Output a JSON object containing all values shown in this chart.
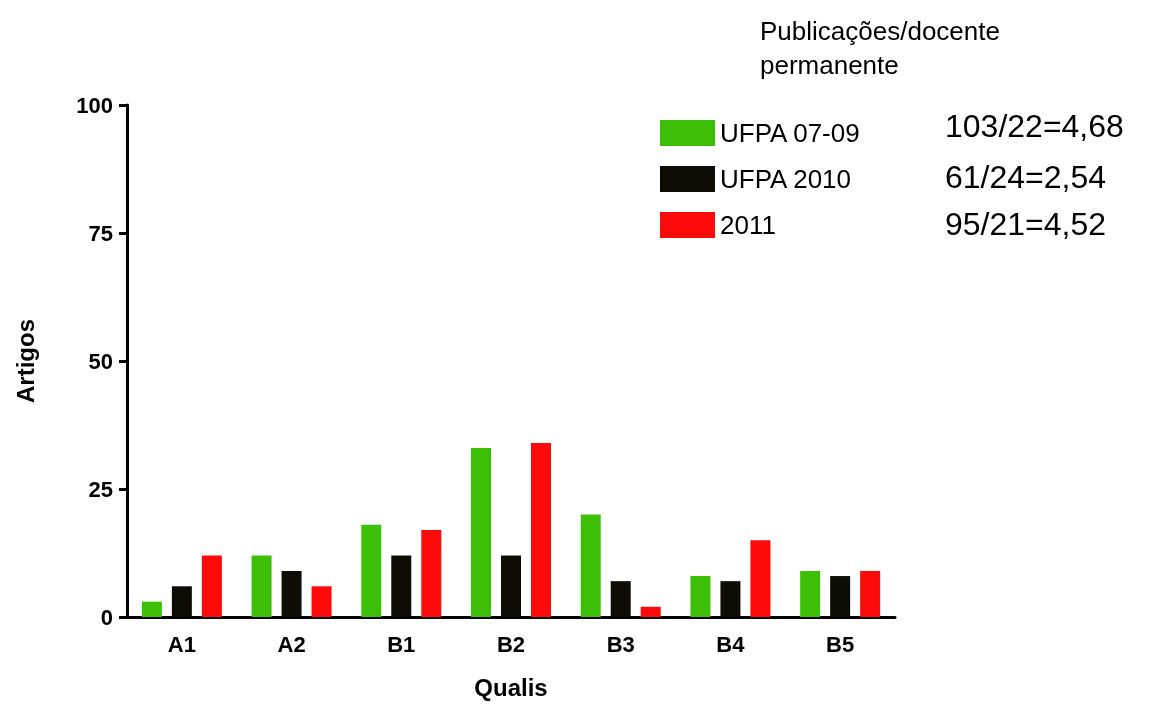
{
  "chart_data": {
    "type": "bar",
    "xlabel": "Qualis",
    "ylabel": "Artigos",
    "categories": [
      "A1",
      "A2",
      "B1",
      "B2",
      "B3",
      "B4",
      "B5"
    ],
    "series": [
      {
        "name": "UFPA 07-09",
        "color": "#3cbf06",
        "values": [
          3,
          12,
          18,
          33,
          20,
          8,
          9
        ]
      },
      {
        "name": "UFPA 2010",
        "color": "#0d0d05",
        "values": [
          6,
          9,
          12,
          12,
          7,
          7,
          8
        ]
      },
      {
        "name": "2011",
        "color": "#ff0a0a",
        "values": [
          12,
          6,
          17,
          34,
          2,
          15,
          9
        ]
      }
    ],
    "ylim": [
      0,
      100
    ],
    "yticks": [
      0,
      25,
      50,
      75,
      100
    ],
    "grid": false,
    "legend": "top right",
    "annotations": [
      "Publicações/docente permanente",
      "103/22=4,68",
      "61/24=2,54",
      "95/21=4,52"
    ]
  }
}
